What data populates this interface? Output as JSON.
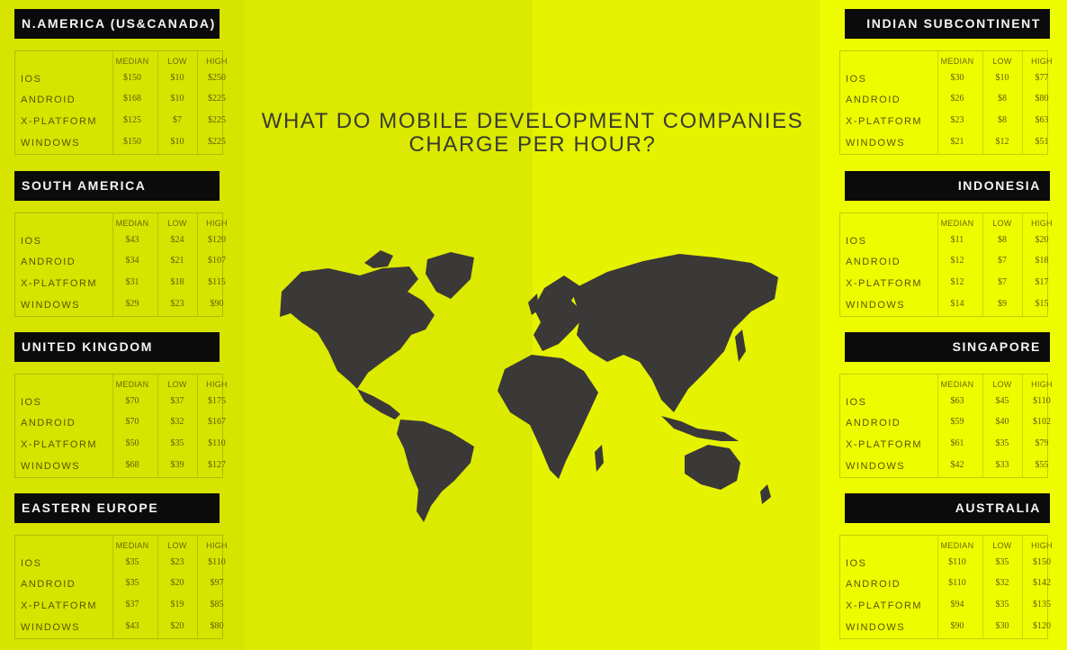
{
  "title_line1": "WHAT DO MOBILE DEVELOPMENT COMPANIES",
  "title_line2": "CHARGE PER HOUR?",
  "colors": {
    "panel_header": "#0b0b0b",
    "header_text": "#f4f4f4",
    "map": "#3b3838",
    "band_left": "#d7e400",
    "band_right": "#eefc00"
  },
  "chart_data": {
    "type": "table",
    "columns": [
      "MEDIAN",
      "LOW",
      "HIGH"
    ],
    "rows": [
      "IOS",
      "ANDROID",
      "X-PLATFORM",
      "WINDOWS"
    ],
    "regions": [
      {
        "name": "N.AMERICA (US&CANADA)",
        "values": [
          [
            "$150",
            "$10",
            "$250"
          ],
          [
            "$168",
            "$10",
            "$225"
          ],
          [
            "$125",
            "$7",
            "$225"
          ],
          [
            "$150",
            "$10",
            "$225"
          ]
        ]
      },
      {
        "name": "SOUTH AMERICA",
        "values": [
          [
            "$43",
            "$24",
            "$120"
          ],
          [
            "$34",
            "$21",
            "$107"
          ],
          [
            "$31",
            "$18",
            "$115"
          ],
          [
            "$29",
            "$23",
            "$90"
          ]
        ]
      },
      {
        "name": "UNITED KINGDOM",
        "values": [
          [
            "$70",
            "$37",
            "$175"
          ],
          [
            "$70",
            "$32",
            "$167"
          ],
          [
            "$50",
            "$35",
            "$110"
          ],
          [
            "$68",
            "$39",
            "$127"
          ]
        ]
      },
      {
        "name": "EASTERN EUROPE",
        "values": [
          [
            "$35",
            "$23",
            "$110"
          ],
          [
            "$35",
            "$20",
            "$97"
          ],
          [
            "$37",
            "$19",
            "$85"
          ],
          [
            "$43",
            "$20",
            "$80"
          ]
        ]
      },
      {
        "name": "INDIAN SUBCONTINENT",
        "values": [
          [
            "$30",
            "$10",
            "$77"
          ],
          [
            "$26",
            "$8",
            "$80"
          ],
          [
            "$23",
            "$8",
            "$63"
          ],
          [
            "$21",
            "$12",
            "$51"
          ]
        ]
      },
      {
        "name": "INDONESIA",
        "values": [
          [
            "$11",
            "$8",
            "$20"
          ],
          [
            "$12",
            "$7",
            "$18"
          ],
          [
            "$12",
            "$7",
            "$17"
          ],
          [
            "$14",
            "$9",
            "$15"
          ]
        ]
      },
      {
        "name": "SINGAPORE",
        "values": [
          [
            "$63",
            "$45",
            "$110"
          ],
          [
            "$59",
            "$40",
            "$102"
          ],
          [
            "$61",
            "$35",
            "$79"
          ],
          [
            "$42",
            "$33",
            "$55"
          ]
        ]
      },
      {
        "name": "AUSTRALIA",
        "values": [
          [
            "$110",
            "$35",
            "$150"
          ],
          [
            "$110",
            "$32",
            "$142"
          ],
          [
            "$94",
            "$35",
            "$135"
          ],
          [
            "$90",
            "$30",
            "$120"
          ]
        ]
      }
    ]
  }
}
